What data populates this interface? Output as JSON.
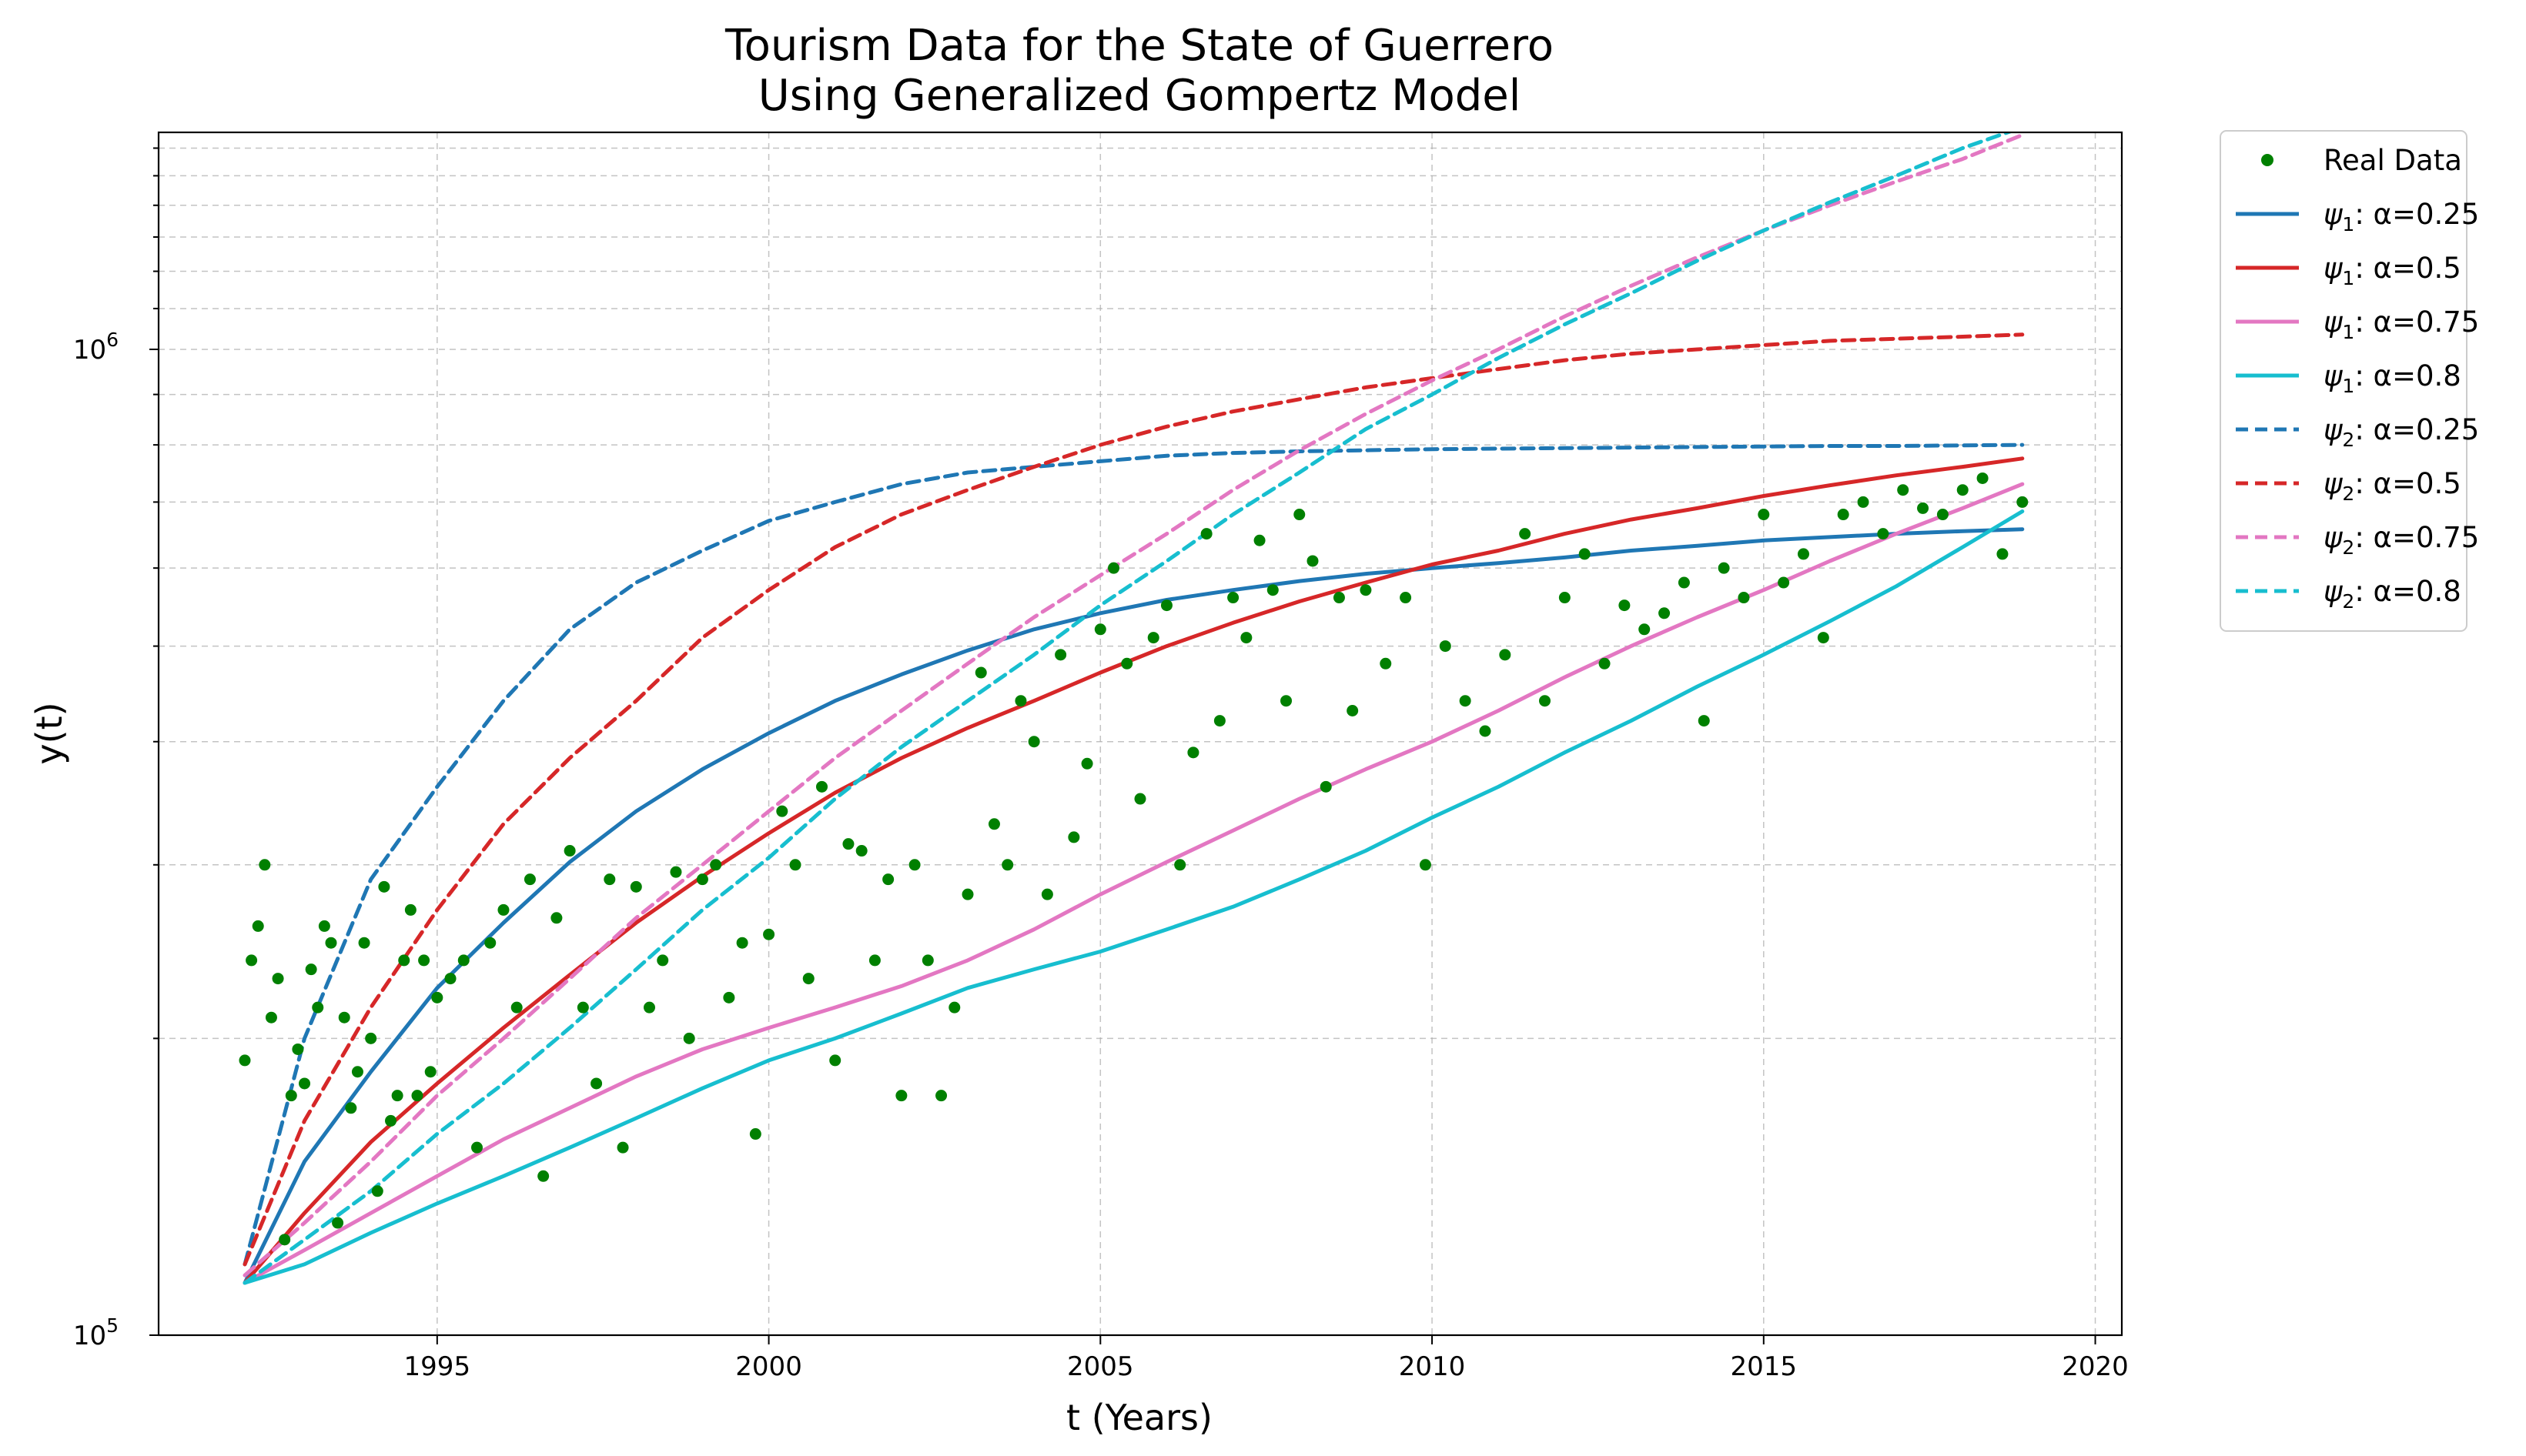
{
  "chart_data": {
    "type": "scatter+line",
    "title": "Tourism Data for the State of Guerrero",
    "subtitle": "Using Generalized Gompertz Model",
    "xlabel": "t (Years)",
    "ylabel": "y(t)",
    "x_scale": "linear",
    "y_scale": "log",
    "xlim": [
      1990.8,
      2020.4
    ],
    "ylim": [
      100000,
      1660000
    ],
    "x_ticks": [
      1995,
      2000,
      2005,
      2010,
      2015,
      2020
    ],
    "x_tick_labels": [
      "1995",
      "2000",
      "2005",
      "2010",
      "2015",
      "2020"
    ],
    "y_major_ticks": [
      {
        "value": 100000,
        "base": "10",
        "exp": "5"
      },
      {
        "value": 1000000,
        "base": "10",
        "exp": "6"
      }
    ],
    "y_minor_ticks": [
      200000,
      300000,
      400000,
      500000,
      600000,
      700000,
      800000,
      900000,
      1100000,
      1200000,
      1300000,
      1400000,
      1500000,
      1600000
    ],
    "grid": true,
    "legend_position": "outside-right-top",
    "scatter": {
      "name": "Real Data",
      "color": "#008000",
      "x": [
        1992.1,
        1992.2,
        1992.3,
        1992.4,
        1992.5,
        1992.6,
        1992.7,
        1992.8,
        1992.9,
        1993.0,
        1993.1,
        1993.2,
        1993.3,
        1993.4,
        1993.5,
        1993.6,
        1993.7,
        1993.8,
        1993.9,
        1994.0,
        1994.1,
        1994.2,
        1994.3,
        1994.4,
        1994.5,
        1994.6,
        1994.7,
        1994.8,
        1994.9,
        1995.0,
        1995.2,
        1995.4,
        1995.6,
        1995.8,
        1996.0,
        1996.2,
        1996.4,
        1996.6,
        1996.8,
        1997.0,
        1997.2,
        1997.4,
        1997.6,
        1997.8,
        1998.0,
        1998.2,
        1998.4,
        1998.6,
        1998.8,
        1999.0,
        1999.2,
        1999.4,
        1999.6,
        1999.8,
        2000.0,
        2000.2,
        2000.4,
        2000.6,
        2000.8,
        2001.0,
        2001.2,
        2001.4,
        2001.6,
        2001.8,
        2002.0,
        2002.2,
        2002.4,
        2002.6,
        2002.8,
        2003.0,
        2003.2,
        2003.4,
        2003.6,
        2003.8,
        2004.0,
        2004.2,
        2004.4,
        2004.6,
        2004.8,
        2005.0,
        2005.2,
        2005.4,
        2005.6,
        2005.8,
        2006.0,
        2006.2,
        2006.4,
        2006.6,
        2006.8,
        2007.0,
        2007.2,
        2007.4,
        2007.6,
        2007.8,
        2008.0,
        2008.2,
        2008.4,
        2008.6,
        2008.8,
        2009.0,
        2009.3,
        2009.6,
        2009.9,
        2010.2,
        2010.5,
        2010.8,
        2011.1,
        2011.4,
        2011.7,
        2012.0,
        2012.3,
        2012.6,
        2012.9,
        2013.2,
        2013.5,
        2013.8,
        2014.1,
        2014.4,
        2014.7,
        2015.0,
        2015.3,
        2015.6,
        2015.9,
        2016.2,
        2016.5,
        2016.8,
        2017.1,
        2017.4,
        2017.7,
        2018.0,
        2018.3,
        2018.6,
        2018.9
      ],
      "y": [
        190000,
        240000,
        260000,
        300000,
        210000,
        230000,
        125000,
        175000,
        195000,
        180000,
        235000,
        215000,
        260000,
        250000,
        130000,
        210000,
        170000,
        185000,
        250000,
        200000,
        140000,
        285000,
        165000,
        175000,
        240000,
        270000,
        175000,
        240000,
        185000,
        220000,
        230000,
        240000,
        155000,
        250000,
        270000,
        215000,
        290000,
        145000,
        265000,
        310000,
        215000,
        180000,
        290000,
        155000,
        285000,
        215000,
        240000,
        295000,
        200000,
        290000,
        300000,
        220000,
        250000,
        160000,
        255000,
        340000,
        300000,
        230000,
        360000,
        190000,
        315000,
        310000,
        240000,
        290000,
        175000,
        300000,
        240000,
        175000,
        215000,
        280000,
        470000,
        330000,
        300000,
        440000,
        400000,
        280000,
        490000,
        320000,
        380000,
        520000,
        600000,
        480000,
        350000,
        510000,
        550000,
        300000,
        390000,
        650000,
        420000,
        560000,
        510000,
        640000,
        570000,
        440000,
        680000,
        610000,
        360000,
        560000,
        430000,
        570000,
        480000,
        560000,
        300000,
        500000,
        440000,
        410000,
        490000,
        650000,
        440000,
        560000,
        620000,
        480000,
        550000,
        520000,
        540000,
        580000,
        420000,
        600000,
        560000,
        680000,
        580000,
        620000,
        510000,
        680000,
        700000,
        650000,
        720000,
        690000,
        680000,
        720000,
        740000,
        620000,
        700000
      ]
    },
    "series": [
      {
        "name": "ψ1: α=0.25",
        "legend_prefix": "ψ",
        "legend_sub": "1",
        "legend_suffix": ": α=0.25",
        "color": "#1f77b4",
        "style": "solid",
        "x": [
          1992.1,
          1993,
          1994,
          1995,
          1996,
          1997,
          1998,
          1999,
          2000,
          2001,
          2002,
          2003,
          2004,
          2005,
          2006,
          2007,
          2008,
          2009,
          2010,
          2011,
          2012,
          2013,
          2014,
          2015,
          2016,
          2017,
          2018,
          2018.9
        ],
        "y": [
          113000,
          150000,
          185000,
          225000,
          262000,
          302000,
          340000,
          375000,
          408000,
          440000,
          468000,
          495000,
          520000,
          540000,
          557000,
          570000,
          582000,
          592000,
          600000,
          607000,
          615000,
          625000,
          632000,
          640000,
          645000,
          650000,
          654000,
          657000
        ]
      },
      {
        "name": "ψ1: α=0.5",
        "legend_prefix": "ψ",
        "legend_sub": "1",
        "legend_suffix": ": α=0.5",
        "color": "#d62728",
        "style": "solid",
        "x": [
          1992.1,
          1993,
          1994,
          1995,
          1996,
          1997,
          1998,
          1999,
          2000,
          2001,
          2002,
          2003,
          2004,
          2005,
          2006,
          2007,
          2008,
          2009,
          2010,
          2011,
          2012,
          2013,
          2014,
          2015,
          2016,
          2017,
          2018,
          2018.9
        ],
        "y": [
          113000,
          133000,
          157000,
          180000,
          205000,
          232000,
          262000,
          292000,
          323000,
          355000,
          385000,
          413000,
          440000,
          470000,
          500000,
          528000,
          555000,
          580000,
          605000,
          625000,
          650000,
          672000,
          690000,
          710000,
          728000,
          745000,
          760000,
          775000
        ]
      },
      {
        "name": "ψ1: α=0.75",
        "legend_prefix": "ψ",
        "legend_sub": "1",
        "legend_suffix": ": α=0.75",
        "color": "#e377c2",
        "style": "solid",
        "x": [
          1992.1,
          1993,
          1994,
          1995,
          1996,
          1997,
          1998,
          1999,
          2000,
          2001,
          2002,
          2003,
          2004,
          2005,
          2006,
          2007,
          2008,
          2009,
          2010,
          2011,
          2012,
          2013,
          2014,
          2015,
          2016,
          2017,
          2018,
          2018.9
        ],
        "y": [
          113000,
          122000,
          133000,
          145000,
          158000,
          170000,
          183000,
          195000,
          205000,
          215000,
          226000,
          240000,
          258000,
          280000,
          302000,
          325000,
          350000,
          375000,
          400000,
          430000,
          465000,
          500000,
          535000,
          570000,
          610000,
          650000,
          690000,
          730000
        ]
      },
      {
        "name": "ψ1: α=0.8",
        "legend_prefix": "ψ",
        "legend_sub": "1",
        "legend_suffix": ": α=0.8",
        "color": "#17becf",
        "style": "solid",
        "x": [
          1992.1,
          1993,
          1994,
          1995,
          1996,
          1997,
          1998,
          1999,
          2000,
          2001,
          2002,
          2003,
          2004,
          2005,
          2006,
          2007,
          2008,
          2009,
          2010,
          2011,
          2012,
          2013,
          2014,
          2015,
          2016,
          2017,
          2018,
          2018.9
        ],
        "y": [
          113000,
          118000,
          127000,
          136000,
          145000,
          155000,
          166000,
          178000,
          190000,
          200000,
          212000,
          225000,
          235000,
          245000,
          258000,
          272000,
          290000,
          310000,
          335000,
          360000,
          390000,
          420000,
          455000,
          490000,
          530000,
          575000,
          630000,
          685000
        ]
      },
      {
        "name": "ψ2: α=0.25",
        "legend_prefix": "ψ",
        "legend_sub": "2",
        "legend_suffix": ": α=0.25",
        "color": "#1f77b4",
        "style": "dashed",
        "x": [
          1992.1,
          1993,
          1994,
          1995,
          1996,
          1997,
          1998,
          1999,
          2000,
          2001,
          2002,
          2003,
          2004,
          2005,
          2006,
          2007,
          2008,
          2009,
          2010,
          2011,
          2012,
          2013,
          2014,
          2015,
          2016,
          2017,
          2018,
          2018.9
        ],
        "y": [
          118000,
          200000,
          290000,
          360000,
          440000,
          520000,
          580000,
          625000,
          670000,
          700000,
          730000,
          750000,
          760000,
          770000,
          780000,
          785000,
          788000,
          790000,
          792000,
          793000,
          794000,
          795000,
          796000,
          797000,
          798000,
          798000,
          799000,
          800000
        ]
      },
      {
        "name": "ψ2: α=0.5",
        "legend_prefix": "ψ",
        "legend_sub": "2",
        "legend_suffix": ": α=0.5",
        "color": "#d62728",
        "style": "dashed",
        "x": [
          1992.1,
          1993,
          1994,
          1995,
          1996,
          1997,
          1998,
          1999,
          2000,
          2001,
          2002,
          2003,
          2004,
          2005,
          2006,
          2007,
          2008,
          2009,
          2010,
          2011,
          2012,
          2013,
          2014,
          2015,
          2016,
          2017,
          2018,
          2018.9
        ],
        "y": [
          118000,
          165000,
          215000,
          270000,
          330000,
          385000,
          440000,
          510000,
          570000,
          630000,
          680000,
          720000,
          760000,
          800000,
          835000,
          865000,
          890000,
          915000,
          935000,
          955000,
          975000,
          990000,
          1000000,
          1010000,
          1020000,
          1025000,
          1030000,
          1035000
        ]
      },
      {
        "name": "ψ2: α=0.75",
        "legend_prefix": "ψ",
        "legend_sub": "2",
        "legend_suffix": ": α=0.75",
        "color": "#e377c2",
        "style": "dashed",
        "x": [
          1992.1,
          1993,
          1994,
          1995,
          1996,
          1997,
          1998,
          1999,
          2000,
          2001,
          2002,
          2003,
          2004,
          2005,
          2006,
          2007,
          2008,
          2009,
          2010,
          2011,
          2012,
          2013,
          2014,
          2015,
          2016,
          2017,
          2018,
          2018.9
        ],
        "y": [
          115000,
          130000,
          150000,
          175000,
          200000,
          230000,
          265000,
          300000,
          340000,
          385000,
          430000,
          480000,
          535000,
          590000,
          650000,
          720000,
          790000,
          860000,
          930000,
          1000000,
          1080000,
          1160000,
          1240000,
          1320000,
          1400000,
          1480000,
          1560000,
          1650000
        ]
      },
      {
        "name": "ψ2: α=0.8",
        "legend_prefix": "ψ",
        "legend_sub": "2",
        "legend_suffix": ": α=0.8",
        "color": "#17becf",
        "style": "dashed",
        "x": [
          1992.1,
          1993,
          1994,
          1995,
          1996,
          1997,
          1998,
          1999,
          2000,
          2001,
          2002,
          2003,
          2004,
          2005,
          2006,
          2007,
          2008,
          2009,
          2010,
          2011,
          2012,
          2013,
          2014,
          2015,
          2016,
          2017,
          2018,
          2018.9
        ],
        "y": [
          113000,
          125000,
          140000,
          160000,
          180000,
          205000,
          235000,
          270000,
          305000,
          350000,
          395000,
          440000,
          490000,
          550000,
          610000,
          680000,
          750000,
          830000,
          900000,
          980000,
          1060000,
          1140000,
          1230000,
          1320000,
          1410000,
          1500000,
          1600000,
          1680000
        ]
      }
    ]
  }
}
